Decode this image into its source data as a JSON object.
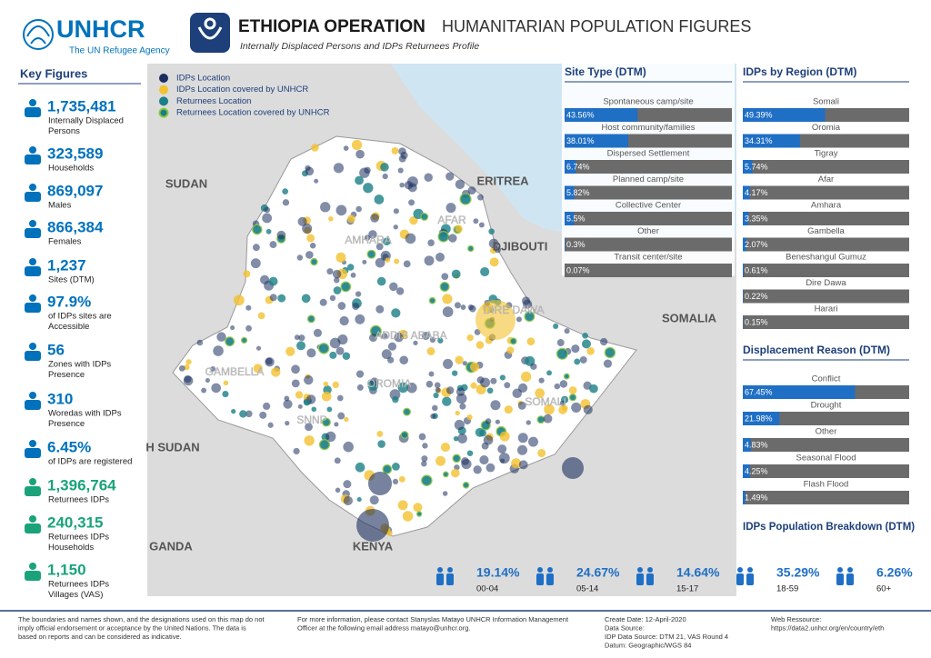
{
  "header": {
    "org": "UNHCR",
    "org_sub": "The UN Refugee Agency",
    "title": "ETHIOPIA OPERATION",
    "title2": "HUMANITARIAN POPULATION FIGURES",
    "subtitle": "Internally Displaced Persons and IDPs Returnees Profile"
  },
  "key_figures": {
    "title": "Key Figures",
    "items": [
      {
        "value": "1,735,481",
        "desc": [
          "Internally Displaced",
          "Persons"
        ],
        "color": "#0072bc"
      },
      {
        "value": "323,589",
        "desc": [
          "Households"
        ],
        "color": "#0072bc"
      },
      {
        "value": "869,097",
        "desc": [
          "Males"
        ],
        "color": "#0072bc"
      },
      {
        "value": "866,384",
        "desc": [
          "Females"
        ],
        "color": "#0072bc"
      },
      {
        "value": "1,237",
        "desc": [
          "Sites (DTM)"
        ],
        "color": "#0072bc"
      },
      {
        "value": "97.9%",
        "desc": [
          "of IDPs sites are",
          "Accessible"
        ],
        "color": "#0072bc"
      },
      {
        "value": "56",
        "desc": [
          "Zones with IDPs",
          "Presence"
        ],
        "color": "#0072bc"
      },
      {
        "value": "310",
        "desc": [
          "Woredas with IDPs",
          "Presence"
        ],
        "color": "#0072bc"
      },
      {
        "value": "6.45%",
        "desc": [
          "of IDPs are registered"
        ],
        "color": "#0072bc"
      },
      {
        "value": "1,396,764",
        "desc": [
          "Returnees IDPs"
        ],
        "color": "#1aa37a"
      },
      {
        "value": "240,315",
        "desc": [
          "Returnees IDPs",
          "Households"
        ],
        "color": "#1aa37a"
      },
      {
        "value": "1,150",
        "desc": [
          "Returnees IDPs",
          "Villages (VAS)"
        ],
        "color": "#1aa37a"
      }
    ]
  },
  "legend": [
    {
      "name": "IDPs Location",
      "color": "#1b2f5e"
    },
    {
      "name": "IDPs Location covered by UNHCR",
      "color": "#f2c12e"
    },
    {
      "name": "Returnees Location",
      "color": "#1a7f86"
    },
    {
      "name": "Returnees Location covered by UNHCR",
      "color": "#8cc63f"
    }
  ],
  "map_labels": {
    "countries": [
      "SUDAN",
      "ERITREA",
      "DJIBOUTI",
      "SOMALIA",
      "KENYA",
      "H SUDAN",
      "GANDA"
    ],
    "regions": [
      "AFAR",
      "AMHARA",
      "DIRE DAWA",
      "ADDIS ABABA",
      "OROMIA",
      "GAMBELLA",
      "SNNP",
      "SOMALI"
    ]
  },
  "chart_data": [
    {
      "type": "hbar",
      "title": "Site Type (DTM)",
      "categories": [
        "Spontaneous camp/site",
        "Host community/families",
        "Dispersed Settlement",
        "Planned camp/site",
        "Collective Center",
        "Other",
        "Transit center/site"
      ],
      "values": [
        43.56,
        38.01,
        6.74,
        5.82,
        5.5,
        0.3,
        0.07
      ],
      "value_labels": [
        "43.56%",
        "38.01%",
        "6.74%",
        "5.82%",
        "5.5%",
        "0.3%",
        "0.07%"
      ],
      "xlim": [
        0,
        100
      ],
      "color": "#1f6fc5",
      "track_color": "#6b6b6b"
    },
    {
      "type": "hbar",
      "title": "IDPs by Region (DTM)",
      "categories": [
        "Somali",
        "Oromia",
        "Tigray",
        "Afar",
        "Amhara",
        "Gambella",
        "Beneshangul Gumuz",
        "Dire Dawa",
        "Harari"
      ],
      "values": [
        49.39,
        34.31,
        5.74,
        4.17,
        3.35,
        2.07,
        0.61,
        0.22,
        0.15
      ],
      "value_labels": [
        "49.39%",
        "34.31%",
        "5.74%",
        "4.17%",
        "3.35%",
        "2.07%",
        "0.61%",
        "0.22%",
        "0.15%"
      ],
      "xlim": [
        0,
        100
      ],
      "color": "#1f6fc5",
      "track_color": "#6b6b6b"
    },
    {
      "type": "hbar",
      "title": "Displacement Reason (DTM)",
      "categories": [
        "Conflict",
        "Drought",
        "Other",
        "Seasonal Flood",
        "Flash Flood"
      ],
      "values": [
        67.45,
        21.98,
        4.83,
        4.25,
        1.49
      ],
      "value_labels": [
        "67.45%",
        "21.98%",
        "4.83%",
        "4.25%",
        "1.49%"
      ],
      "xlim": [
        0,
        100
      ],
      "color": "#1f6fc5",
      "track_color": "#6b6b6b"
    },
    {
      "type": "pictogram",
      "title": "IDPs Population Breakdown (DTM)",
      "categories": [
        "00-04",
        "05-14",
        "15-17",
        "18-59",
        "60+"
      ],
      "values": [
        19.14,
        24.67,
        14.64,
        35.29,
        6.26
      ],
      "value_labels": [
        "19.14%",
        "24.67%",
        "14.64%",
        "35.29%",
        "6.26%"
      ],
      "color": "#1f6fc5"
    }
  ],
  "footer": {
    "disclaimer": [
      "The boundaries and names shown, and the designations used on this map do not",
      "imply official endorsement or acceptance by the United Nations. The data is",
      "based on reports and can be considered as indicative."
    ],
    "contact": [
      "For more information, please contact Stanyslas Matayo UNHCR Information Management",
      "Officer at the following email address matayo@unhcr.org."
    ],
    "meta": [
      "Create Date: 12-April-2020",
      "Data Source:",
      "IDP Data Source: DTM 21, VAS Round 4",
      "Datum: Geographic/WGS 84"
    ],
    "web": [
      "Web Ressource:",
      "https://data2.unhcr.org/en/country/eth"
    ]
  }
}
